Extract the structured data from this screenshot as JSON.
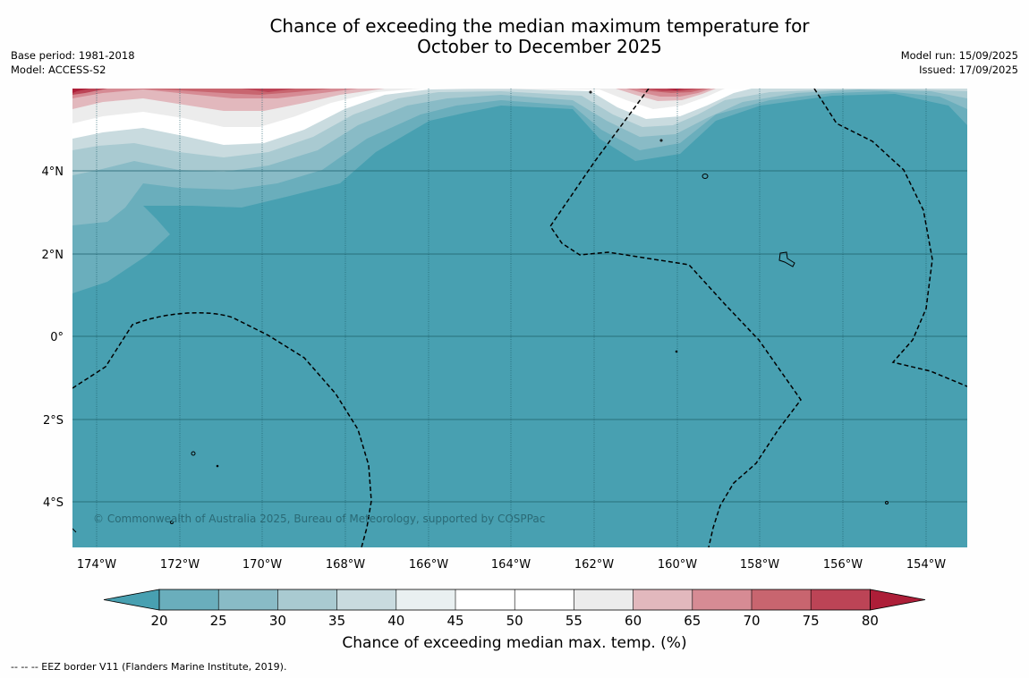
{
  "title_line1": "Chance of exceeding the median maximum temperature for",
  "title_line2": "October to December 2025",
  "meta_left": {
    "base_period": "Base period: 1981-2018",
    "model": "Model: ACCESS-S2"
  },
  "meta_right": {
    "model_run": "Model run: 15/09/2025",
    "issued": "Issued: 17/09/2025"
  },
  "copyright": "© Commonwealth of Australia 2025, Bureau of Meteorology, supported by COSPPac",
  "lon_labels": [
    "174°W",
    "172°W",
    "170°W",
    "168°W",
    "166°W",
    "164°W",
    "162°W",
    "160°W",
    "158°W",
    "156°W",
    "154°W"
  ],
  "lat_labels": [
    "4°N",
    "2°N",
    "0°",
    "2°S",
    "4°S"
  ],
  "colorbar": {
    "ticks": [
      "20",
      "25",
      "30",
      "35",
      "40",
      "45",
      "50",
      "55",
      "60",
      "65",
      "70",
      "75",
      "80"
    ],
    "label": "Chance of exceeding median max. temp. (%)",
    "colors": [
      "#48a0b1",
      "#6aaebc",
      "#89bbc6",
      "#a9cad1",
      "#c9dbdf",
      "#e9f0f1",
      "#ffffff",
      "#ffffff",
      "#ececec",
      "#e2b8bd",
      "#d68b94",
      "#c8656f",
      "#bc4456",
      "#ad1e38"
    ]
  },
  "footnote": "--  --  -- EEZ border V11 (Flanders Marine Institute, 2019).",
  "colors": {
    "ocean": "#48a0b1",
    "grid": "#1e5f6b",
    "eez": "#000000"
  }
}
